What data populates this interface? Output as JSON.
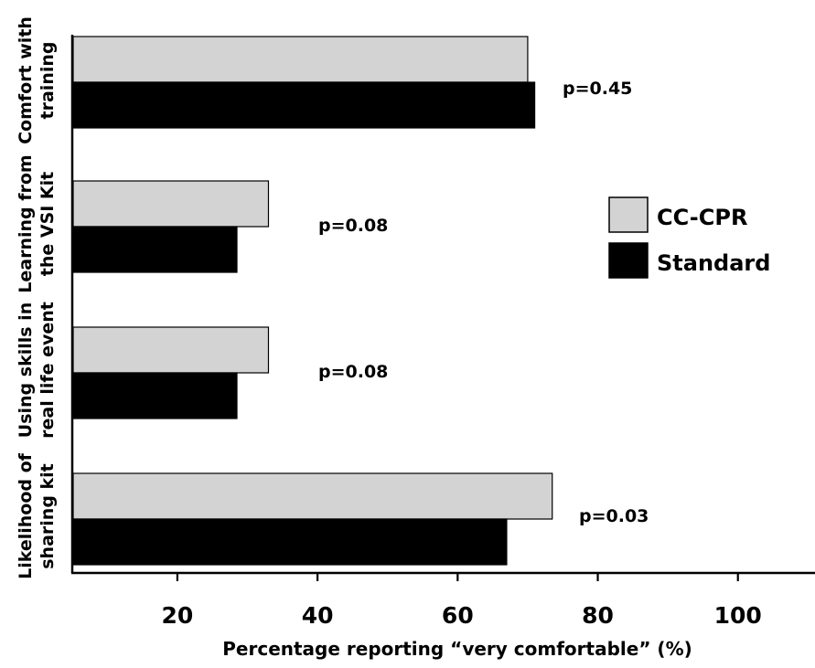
{
  "chart_data": {
    "type": "bar",
    "orientation": "horizontal",
    "categories": [
      [
        "Comfort with",
        "training"
      ],
      [
        "Learning from",
        "the VSI Kit"
      ],
      [
        "Using skills in",
        "real life event"
      ],
      [
        "Likelihood of",
        "sharing kit"
      ]
    ],
    "series": [
      {
        "name": "CC-CPR",
        "values": [
          70,
          33,
          33,
          73.5
        ],
        "color": "#d3d3d3"
      },
      {
        "name": "Standard",
        "values": [
          71,
          28.5,
          28.5,
          67
        ],
        "color": "#000000"
      }
    ],
    "annotations": [
      "p=0.45",
      "p=0.08",
      "p=0.08",
      "p=0.03"
    ],
    "xlabel": "Percentage reporting “very comfortable” (%)",
    "ylabel": "",
    "title": "",
    "xlim": [
      5,
      111
    ],
    "xticks": [
      20,
      40,
      60,
      80,
      100
    ],
    "grid": false,
    "legend_position": "right"
  }
}
